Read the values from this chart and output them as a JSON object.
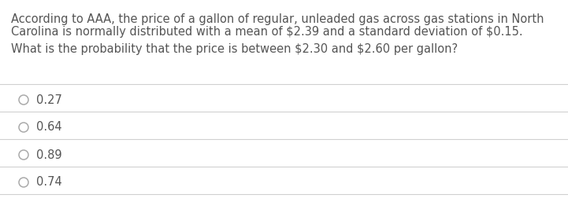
{
  "line1": "According to AAA, the price of a gallon of regular, unleaded gas across gas stations in North",
  "line2": "Carolina is normally distributed with a mean of $2.39 and a standard deviation of $0.15.",
  "question": "What is the probability that the price is between $2.30 and $2.60 per gallon?",
  "options": [
    "0.27",
    "0.64",
    "0.89",
    "0.74"
  ],
  "bg_color": "#ffffff",
  "text_color": "#555555",
  "line_color": "#d0d0d0",
  "circle_color": "#aaaaaa",
  "font_size": 10.5
}
